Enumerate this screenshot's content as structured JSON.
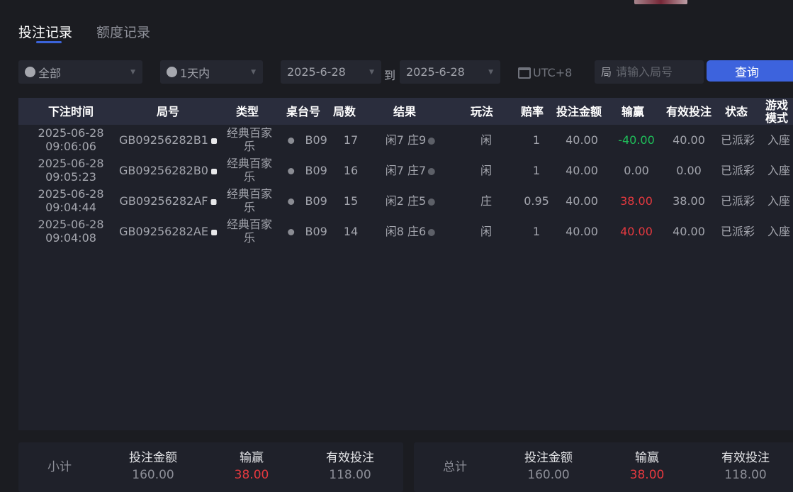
{
  "tabs": [
    {
      "label": "投注记录",
      "active": true
    },
    {
      "label": "额度记录",
      "active": false
    }
  ],
  "filters": {
    "game": "全部",
    "range": "1天内",
    "date_from": "2025-6-28",
    "to_label": "到",
    "date_to": "2025-6-28",
    "timezone": "UTC+8",
    "round_placeholder": "请输入局号",
    "query_label": "查询"
  },
  "table": {
    "headers": [
      "下注时间",
      "局号",
      "类型",
      "桌台号",
      "局数",
      "结果",
      "玩法",
      "赔率",
      "投注金额",
      "输赢",
      "有效投注",
      "状态",
      "游戏模式"
    ],
    "rows": [
      {
        "date": "2025-06-28",
        "time": "09:06:06",
        "id": "GB09256282B1",
        "type1": "经典百家",
        "type2": "乐",
        "table": "B09",
        "round": "17",
        "result": "闲7 庄9",
        "bet": "闲",
        "odds": "1",
        "amount": "40.00",
        "winloss": "-40.00",
        "wl_color": "green",
        "valid": "40.00",
        "status": "已派彩",
        "mode": "入座"
      },
      {
        "date": "2025-06-28",
        "time": "09:05:23",
        "id": "GB09256282B0",
        "type1": "经典百家",
        "type2": "乐",
        "table": "B09",
        "round": "16",
        "result": "闲7 庄7",
        "bet": "闲",
        "odds": "1",
        "amount": "40.00",
        "winloss": "0.00",
        "wl_color": "gray",
        "valid": "0.00",
        "status": "已派彩",
        "mode": "入座"
      },
      {
        "date": "2025-06-28",
        "time": "09:04:44",
        "id": "GB09256282AF",
        "type1": "经典百家",
        "type2": "乐",
        "table": "B09",
        "round": "15",
        "result": "闲2 庄5",
        "bet": "庄",
        "odds": "0.95",
        "amount": "40.00",
        "winloss": "38.00",
        "wl_color": "red",
        "valid": "38.00",
        "status": "已派彩",
        "mode": "入座"
      },
      {
        "date": "2025-06-28",
        "time": "09:04:08",
        "id": "GB09256282AE",
        "type1": "经典百家",
        "type2": "乐",
        "table": "B09",
        "round": "14",
        "result": "闲8 庄6",
        "bet": "闲",
        "odds": "1",
        "amount": "40.00",
        "winloss": "40.00",
        "wl_color": "red",
        "valid": "40.00",
        "status": "已派彩",
        "mode": "入座"
      }
    ]
  },
  "subtotal": {
    "label": "小计",
    "amount_label": "投注金额",
    "amount": "160.00",
    "winloss_label": "输赢",
    "winloss": "38.00",
    "valid_label": "有效投注",
    "valid": "118.00"
  },
  "total": {
    "label": "总计",
    "amount_label": "投注金额",
    "amount": "160.00",
    "winloss_label": "输赢",
    "winloss": "38.00",
    "valid_label": "有效投注",
    "valid": "118.00"
  },
  "colors": {
    "accent": "#3d63dd",
    "win": "#e5393f",
    "loss": "#1fbf5a"
  }
}
